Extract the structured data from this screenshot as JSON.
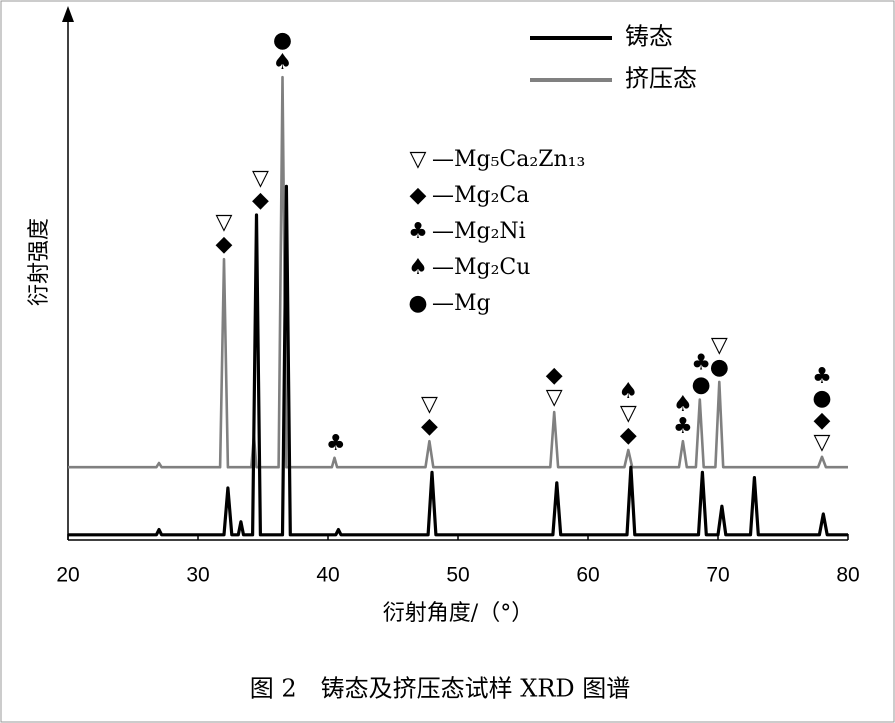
{
  "chart_data": {
    "type": "line",
    "caption": "图 2　铸态及挤压态试样 XRD 图谱",
    "x_label": "衍射角度/（°）",
    "y_label": "衍射强度",
    "xlim": [
      20,
      80
    ],
    "xticks": [
      20,
      30,
      40,
      50,
      60,
      70,
      80
    ],
    "ylim": [
      0,
      100
    ],
    "series": [
      {
        "name": "铸态",
        "color": "#000000",
        "x": [
          20,
          26.8,
          27,
          27.2,
          32,
          32.3,
          32.6,
          33.1,
          33.3,
          33.5,
          34.2,
          34.5,
          34.8,
          36.5,
          36.8,
          37.1,
          40.6,
          40.8,
          41,
          47.7,
          48,
          48.3,
          57.3,
          57.6,
          57.9,
          63,
          63.3,
          63.6,
          68.5,
          68.8,
          69.1,
          70,
          70.3,
          70.6,
          72.5,
          72.8,
          73.1,
          77.8,
          78.1,
          78.4,
          80
        ],
        "values": [
          1,
          1,
          2,
          1,
          1,
          10,
          1,
          1,
          3.5,
          1,
          1,
          62.5,
          1,
          1,
          68,
          1,
          1,
          2,
          1,
          1,
          13,
          1,
          1,
          11,
          1,
          1,
          14,
          1,
          1,
          13,
          1,
          1,
          6.5,
          1,
          1,
          12,
          1,
          1,
          5,
          1,
          1
        ]
      },
      {
        "name": "挤压态",
        "color": "#808080",
        "x": [
          20,
          26.8,
          27,
          27.2,
          31.7,
          32,
          32.3,
          34.1,
          34.3,
          34.5,
          36.2,
          36.5,
          36.8,
          40.3,
          40.5,
          40.7,
          47.5,
          47.8,
          48.1,
          57.1,
          57.4,
          57.7,
          62.8,
          63.1,
          63.4,
          67,
          67.3,
          67.6,
          68.3,
          68.6,
          68.9,
          69.8,
          70.1,
          70.4,
          77.7,
          78,
          78.3,
          80
        ],
        "values": [
          14,
          14,
          14.8,
          14,
          14,
          54,
          14,
          14,
          20,
          14,
          14,
          89,
          14,
          14,
          15.8,
          14,
          14,
          19,
          14,
          14,
          24.6,
          14,
          14,
          17.3,
          14,
          14,
          19,
          14,
          14,
          27,
          14,
          14,
          30.4,
          14,
          14,
          16,
          14,
          14
        ]
      }
    ],
    "phases": [
      {
        "symbol": "▽",
        "label": "—Mg₅Ca₂Zn₁₃"
      },
      {
        "symbol": "◆",
        "label": "—Mg₂Ca"
      },
      {
        "symbol": "♣",
        "label": "—Mg₂Ni"
      },
      {
        "symbol": "♠",
        "label": "—Mg₂Cu"
      },
      {
        "symbol": "●",
        "label": "—Mg"
      }
    ],
    "peak_annotations": [
      {
        "x": 32,
        "symbols": [
          "▽",
          "◆"
        ]
      },
      {
        "x": 34.8,
        "symbols": [
          "▽",
          "◆"
        ]
      },
      {
        "x": 36.5,
        "symbols": [
          "●",
          "♠"
        ]
      },
      {
        "x": 40.6,
        "symbols": [
          "♣"
        ]
      },
      {
        "x": 47.8,
        "symbols": [
          "▽",
          "◆"
        ]
      },
      {
        "x": 57.4,
        "symbols": [
          "◆",
          "▽"
        ]
      },
      {
        "x": 63.1,
        "symbols": [
          "♠",
          "▽",
          "◆"
        ]
      },
      {
        "x": 67.3,
        "symbols": [
          "♠",
          "♣"
        ]
      },
      {
        "x": 68.7,
        "symbols": [
          "♣",
          "●"
        ]
      },
      {
        "x": 70.1,
        "symbols": [
          "▽",
          "●"
        ]
      },
      {
        "x": 78,
        "symbols": [
          "♣",
          "●",
          "◆",
          "▽"
        ]
      }
    ]
  }
}
